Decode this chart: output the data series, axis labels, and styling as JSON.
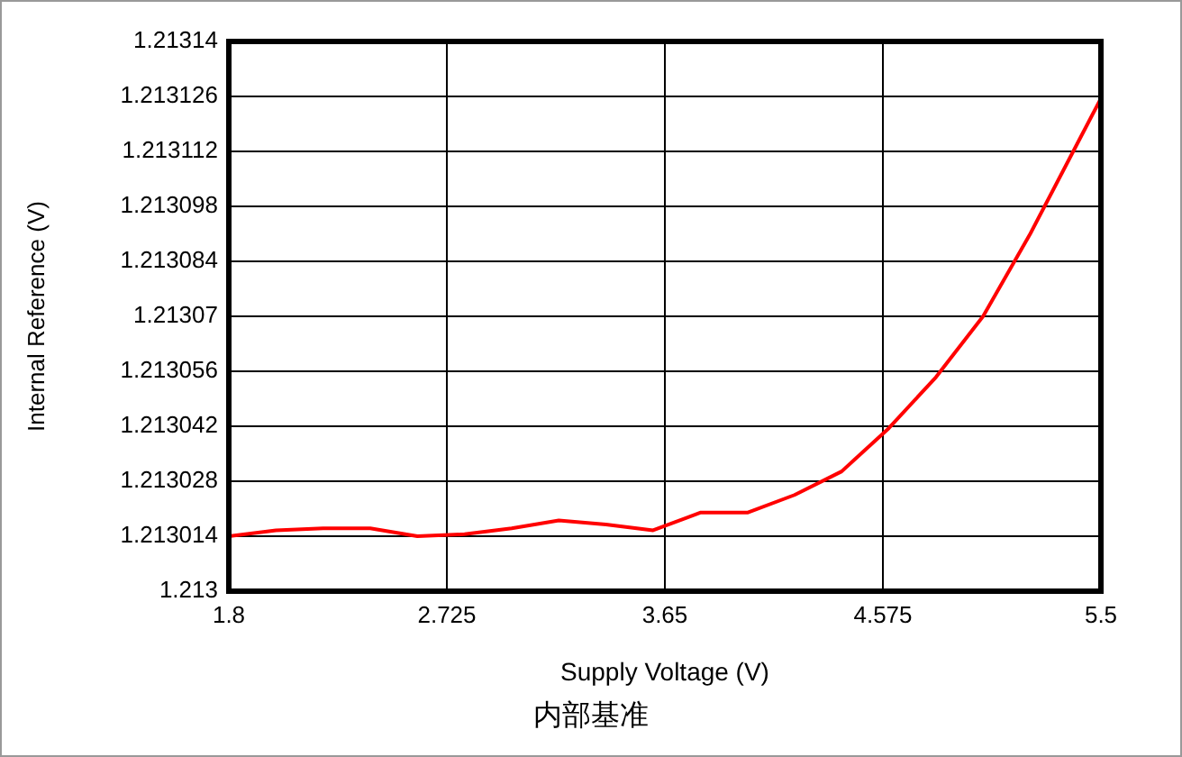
{
  "chart_data": {
    "type": "line",
    "xlabel": "Supply Voltage (V)",
    "ylabel": "Internal Reference (V)",
    "annotations": [
      "内部基准"
    ],
    "x": [
      1.8,
      2.0,
      2.2,
      2.4,
      2.6,
      2.8,
      3.0,
      3.2,
      3.4,
      3.6,
      3.8,
      4.0,
      4.2,
      4.4,
      4.6,
      4.8,
      5.0,
      5.2,
      5.4,
      5.5
    ],
    "series": [
      {
        "color": "#ff0000",
        "values": [
          1.213014,
          1.2130155,
          1.213016,
          1.213016,
          1.213014,
          1.2130145,
          1.213016,
          1.213018,
          1.213017,
          1.2130155,
          1.21302,
          1.21302,
          1.2130245,
          1.2130305,
          1.2130415,
          1.2130545,
          1.21307,
          1.213091,
          1.213114,
          1.2131255
        ]
      }
    ],
    "xlim": [
      1.8,
      5.5
    ],
    "xticks": [
      1.8,
      2.725,
      3.65,
      4.575,
      5.5
    ],
    "ylim": [
      1.213,
      1.21314
    ],
    "yticks": [
      1.213,
      1.213014,
      1.213028,
      1.213042,
      1.213056,
      1.21307,
      1.213084,
      1.213098,
      1.213112,
      1.213126,
      1.21314
    ],
    "grid": true,
    "legend": false,
    "marker": "none",
    "line_style": "solid"
  }
}
